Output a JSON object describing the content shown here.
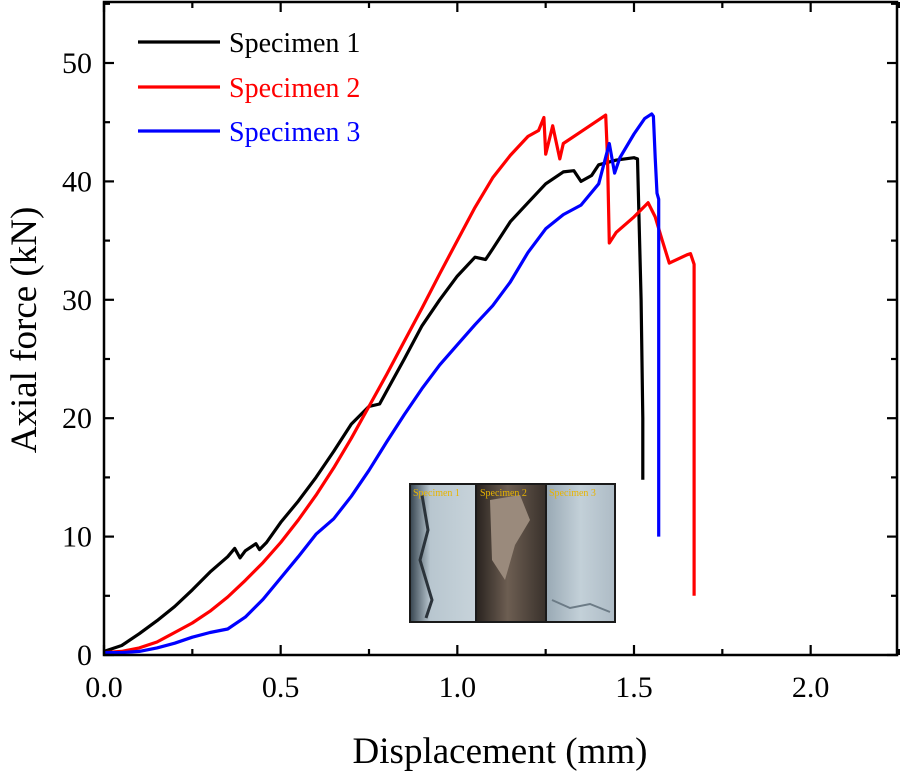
{
  "colors": {
    "specimen1": "#000000",
    "specimen2": "#ff0000",
    "specimen3": "#0000ff",
    "inset_label": "#e8b400"
  },
  "inset": {
    "panels": [
      "Specimen 1",
      "Specimen 2",
      "Specimen 3"
    ]
  },
  "chart_data": {
    "type": "line",
    "title": "",
    "xlabel": "Displacement (mm)",
    "ylabel": "Axial force (kN)",
    "xlim": [
      0,
      2.25
    ],
    "ylim": [
      0,
      55
    ],
    "xticks": [
      0.0,
      0.5,
      1.0,
      1.5,
      2.0
    ],
    "xtick_labels": [
      "0.0",
      "0.5",
      "1.0",
      "1.5",
      "2.0"
    ],
    "yticks": [
      0,
      10,
      20,
      30,
      40,
      50
    ],
    "ytick_labels": [
      "0",
      "10",
      "20",
      "30",
      "40",
      "50"
    ],
    "legend_position": "top-left",
    "series": [
      {
        "name": "Specimen 1",
        "color": "#000000",
        "x": [
          0,
          0.05,
          0.1,
          0.15,
          0.2,
          0.25,
          0.3,
          0.35,
          0.37,
          0.385,
          0.4,
          0.43,
          0.44,
          0.46,
          0.5,
          0.55,
          0.6,
          0.65,
          0.7,
          0.75,
          0.78,
          0.8,
          0.85,
          0.9,
          0.95,
          1.0,
          1.05,
          1.08,
          1.1,
          1.15,
          1.2,
          1.25,
          1.3,
          1.33,
          1.35,
          1.38,
          1.4,
          1.45,
          1.5,
          1.51,
          1.52,
          1.525,
          1.525
        ],
        "y": [
          0.3,
          0.8,
          1.8,
          2.9,
          4.1,
          5.5,
          7.0,
          8.3,
          9.0,
          8.2,
          8.8,
          9.4,
          8.9,
          9.5,
          11.2,
          13.0,
          15.0,
          17.2,
          19.5,
          21.0,
          21.2,
          22.3,
          25.0,
          27.8,
          30.0,
          32.0,
          33.6,
          33.4,
          34.3,
          36.6,
          38.2,
          39.8,
          40.8,
          40.9,
          40.0,
          40.5,
          41.4,
          41.8,
          42.0,
          41.9,
          30.0,
          20.0,
          14.8
        ]
      },
      {
        "name": "Specimen 2",
        "color": "#ff0000",
        "x": [
          0,
          0.05,
          0.1,
          0.15,
          0.2,
          0.25,
          0.3,
          0.35,
          0.4,
          0.45,
          0.5,
          0.55,
          0.6,
          0.65,
          0.7,
          0.75,
          0.8,
          0.85,
          0.9,
          0.95,
          1.0,
          1.05,
          1.1,
          1.15,
          1.2,
          1.23,
          1.245,
          1.25,
          1.27,
          1.29,
          1.3,
          1.35,
          1.4,
          1.42,
          1.425,
          1.43,
          1.45,
          1.5,
          1.54,
          1.56,
          1.58,
          1.6,
          1.65,
          1.66,
          1.67,
          1.67,
          1.67
        ],
        "y": [
          0.2,
          0.3,
          0.6,
          1.1,
          1.9,
          2.7,
          3.7,
          4.9,
          6.3,
          7.8,
          9.5,
          11.4,
          13.5,
          15.8,
          18.3,
          21.0,
          23.7,
          26.5,
          29.3,
          32.2,
          35.0,
          37.8,
          40.3,
          42.2,
          43.8,
          44.3,
          45.4,
          42.3,
          44.7,
          41.9,
          43.2,
          44.2,
          45.2,
          45.6,
          42.0,
          34.8,
          35.7,
          37.0,
          38.2,
          37.0,
          35.0,
          33.1,
          33.8,
          33.9,
          33.0,
          20.0,
          5.0
        ]
      },
      {
        "name": "Specimen 3",
        "color": "#0000ff",
        "x": [
          0,
          0.05,
          0.1,
          0.15,
          0.2,
          0.25,
          0.3,
          0.35,
          0.4,
          0.45,
          0.5,
          0.55,
          0.6,
          0.65,
          0.7,
          0.75,
          0.8,
          0.85,
          0.9,
          0.95,
          1.0,
          1.05,
          1.1,
          1.15,
          1.2,
          1.25,
          1.3,
          1.35,
          1.4,
          1.43,
          1.445,
          1.46,
          1.5,
          1.53,
          1.55,
          1.555,
          1.56,
          1.565,
          1.57,
          1.57,
          1.57
        ],
        "y": [
          0.2,
          0.2,
          0.3,
          0.6,
          1.0,
          1.5,
          1.9,
          2.2,
          3.2,
          4.7,
          6.5,
          8.3,
          10.2,
          11.5,
          13.4,
          15.6,
          18.0,
          20.3,
          22.5,
          24.5,
          26.2,
          27.9,
          29.5,
          31.5,
          34.0,
          36.0,
          37.2,
          38.0,
          39.8,
          43.2,
          40.7,
          42.0,
          44.0,
          45.3,
          45.7,
          45.5,
          42.0,
          39.0,
          38.5,
          25.0,
          10.0
        ]
      }
    ]
  }
}
